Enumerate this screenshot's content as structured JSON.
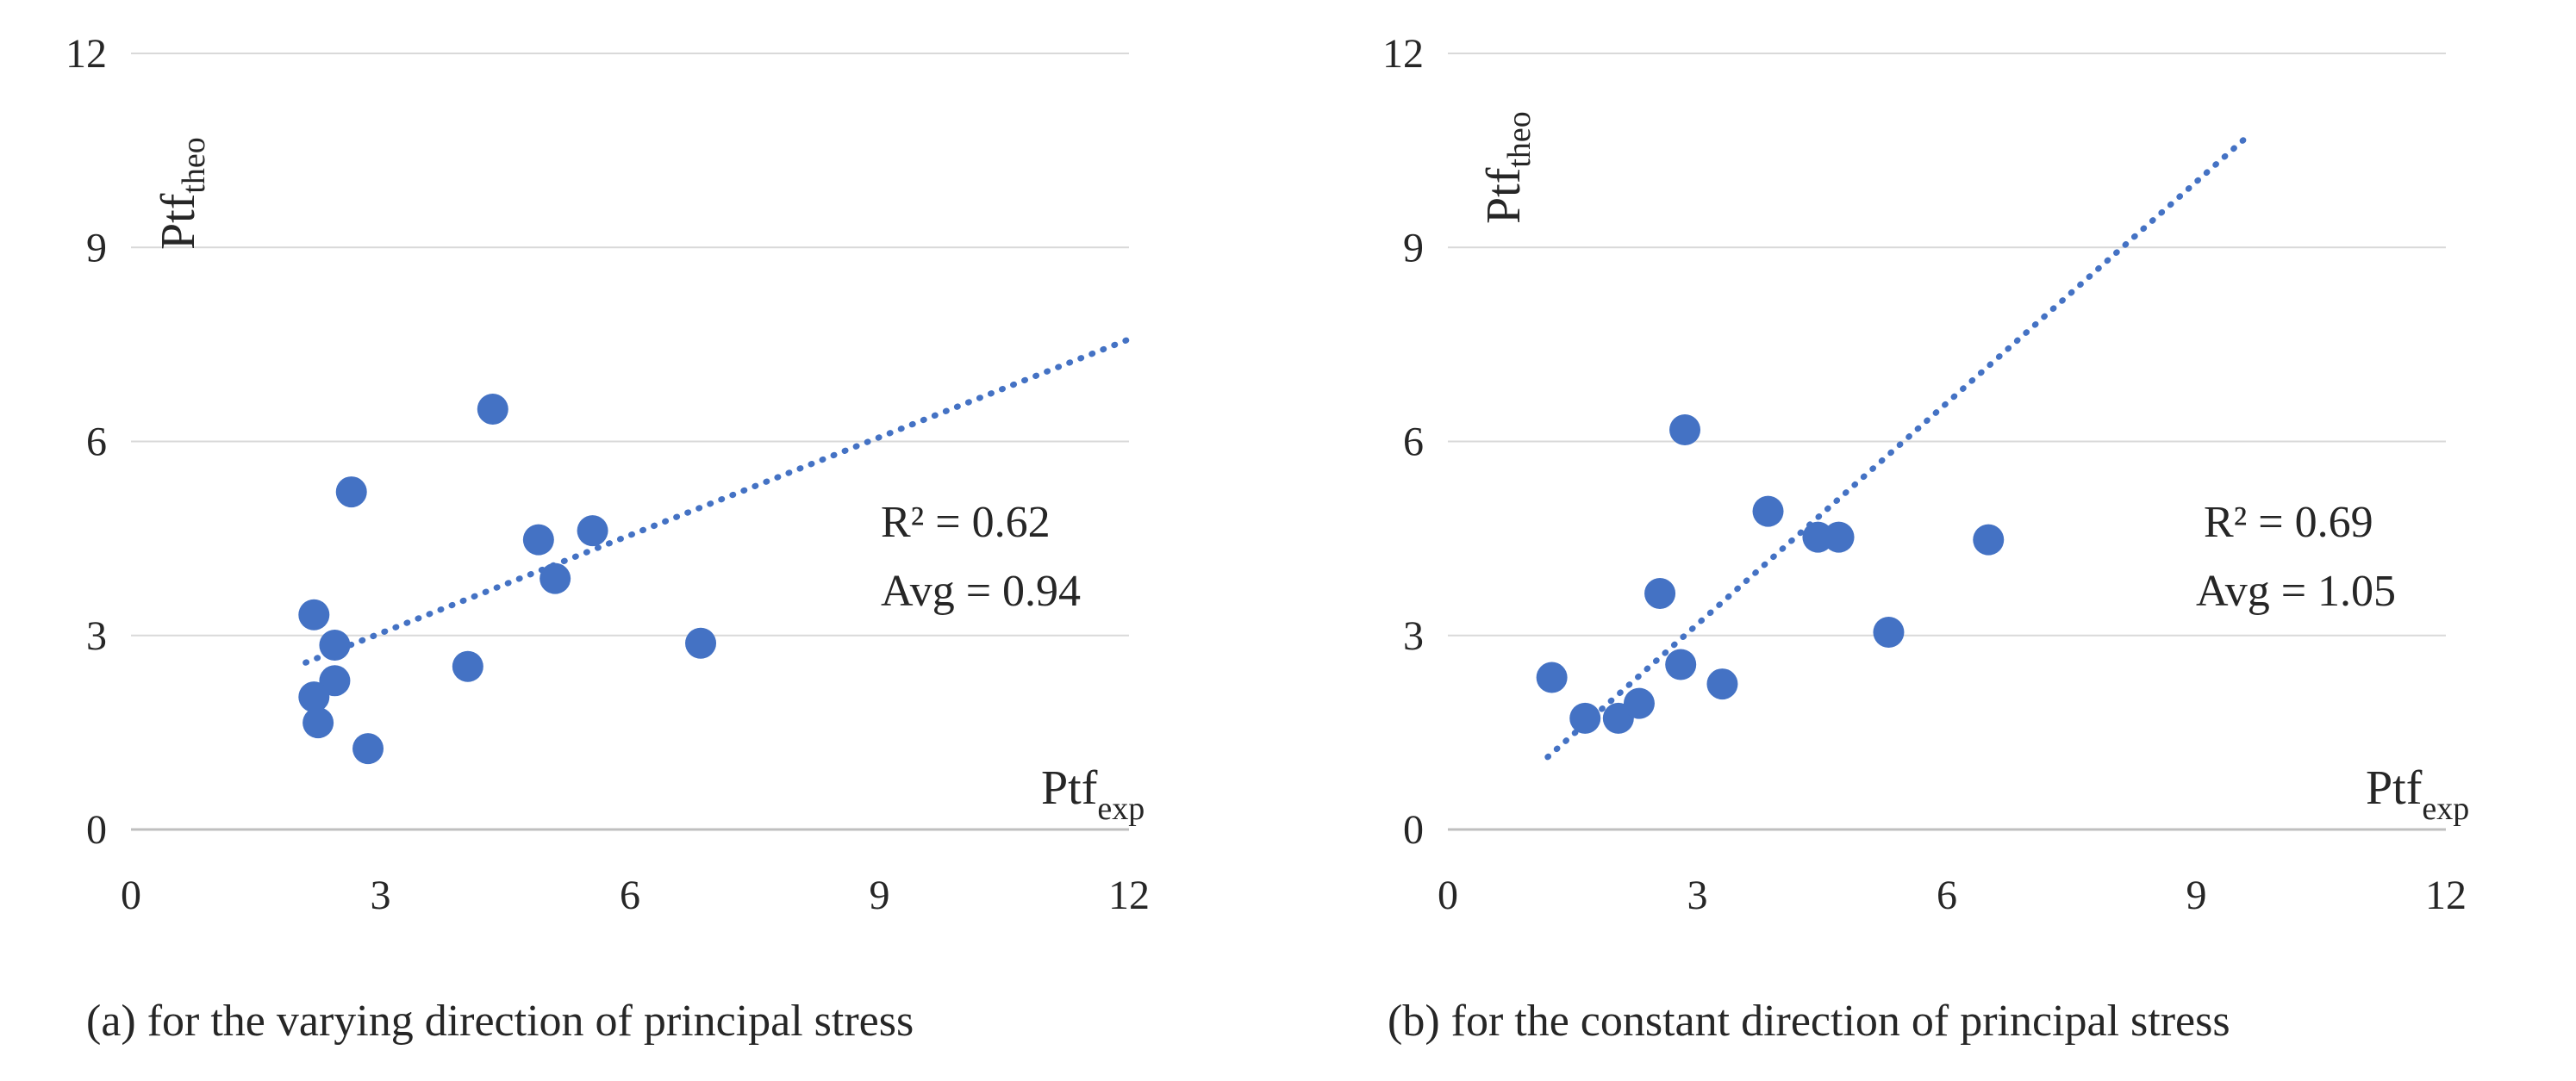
{
  "figure": {
    "marker_color": "#4472C4",
    "trend_color": "#4472C4",
    "grid_color": "#D9D9D9",
    "axis_color": "#BFBFBF"
  },
  "chart_data": [
    {
      "id": "a",
      "type": "scatter",
      "xlim": [
        0,
        12
      ],
      "ylim": [
        0,
        12
      ],
      "xticks": [
        "0",
        "3",
        "6",
        "9",
        "12"
      ],
      "yticks": [
        "0",
        "3",
        "6",
        "9",
        "12"
      ],
      "ylabel": {
        "base": "Ptf",
        "sub": "theo"
      },
      "xlabel": {
        "base": "Ptf",
        "sub": "exp"
      },
      "points": [
        [
          2.2,
          3.32
        ],
        [
          2.65,
          5.22
        ],
        [
          4.35,
          6.5
        ],
        [
          2.45,
          2.85
        ],
        [
          2.45,
          2.3
        ],
        [
          2.2,
          2.05
        ],
        [
          2.25,
          1.65
        ],
        [
          2.85,
          1.25
        ],
        [
          4.05,
          2.52
        ],
        [
          4.9,
          4.48
        ],
        [
          5.1,
          3.88
        ],
        [
          5.55,
          4.62
        ],
        [
          6.85,
          2.88
        ]
      ],
      "trendline": {
        "x": [
          2.1,
          12.0
        ],
        "y": [
          2.58,
          7.58
        ]
      },
      "r2_text": "R² = 0.62",
      "avg_text": "Avg = 0.94",
      "caption": "(a) for the varying direction of principal stress"
    },
    {
      "id": "b",
      "type": "scatter",
      "xlim": [
        0,
        12
      ],
      "ylim": [
        0,
        12
      ],
      "xticks": [
        "0",
        "3",
        "6",
        "9",
        "12"
      ],
      "yticks": [
        "0",
        "3",
        "6",
        "9",
        "12"
      ],
      "ylabel": {
        "base": "Ptf",
        "sub": "theo"
      },
      "xlabel": {
        "base": "Ptf",
        "sub": "exp"
      },
      "points": [
        [
          1.25,
          2.35
        ],
        [
          1.65,
          1.72
        ],
        [
          2.05,
          1.72
        ],
        [
          2.3,
          1.95
        ],
        [
          2.55,
          3.65
        ],
        [
          2.8,
          2.55
        ],
        [
          2.85,
          6.18
        ],
        [
          3.3,
          2.25
        ],
        [
          3.85,
          4.92
        ],
        [
          4.45,
          4.52
        ],
        [
          4.7,
          4.52
        ],
        [
          5.3,
          3.05
        ],
        [
          6.5,
          4.48
        ]
      ],
      "trendline": {
        "x": [
          1.2,
          9.6
        ],
        "y": [
          1.12,
          10.7
        ]
      },
      "r2_text": "R² = 0.69",
      "avg_text": "Avg = 1.05",
      "caption": "(b) for the constant direction of principal stress"
    }
  ]
}
